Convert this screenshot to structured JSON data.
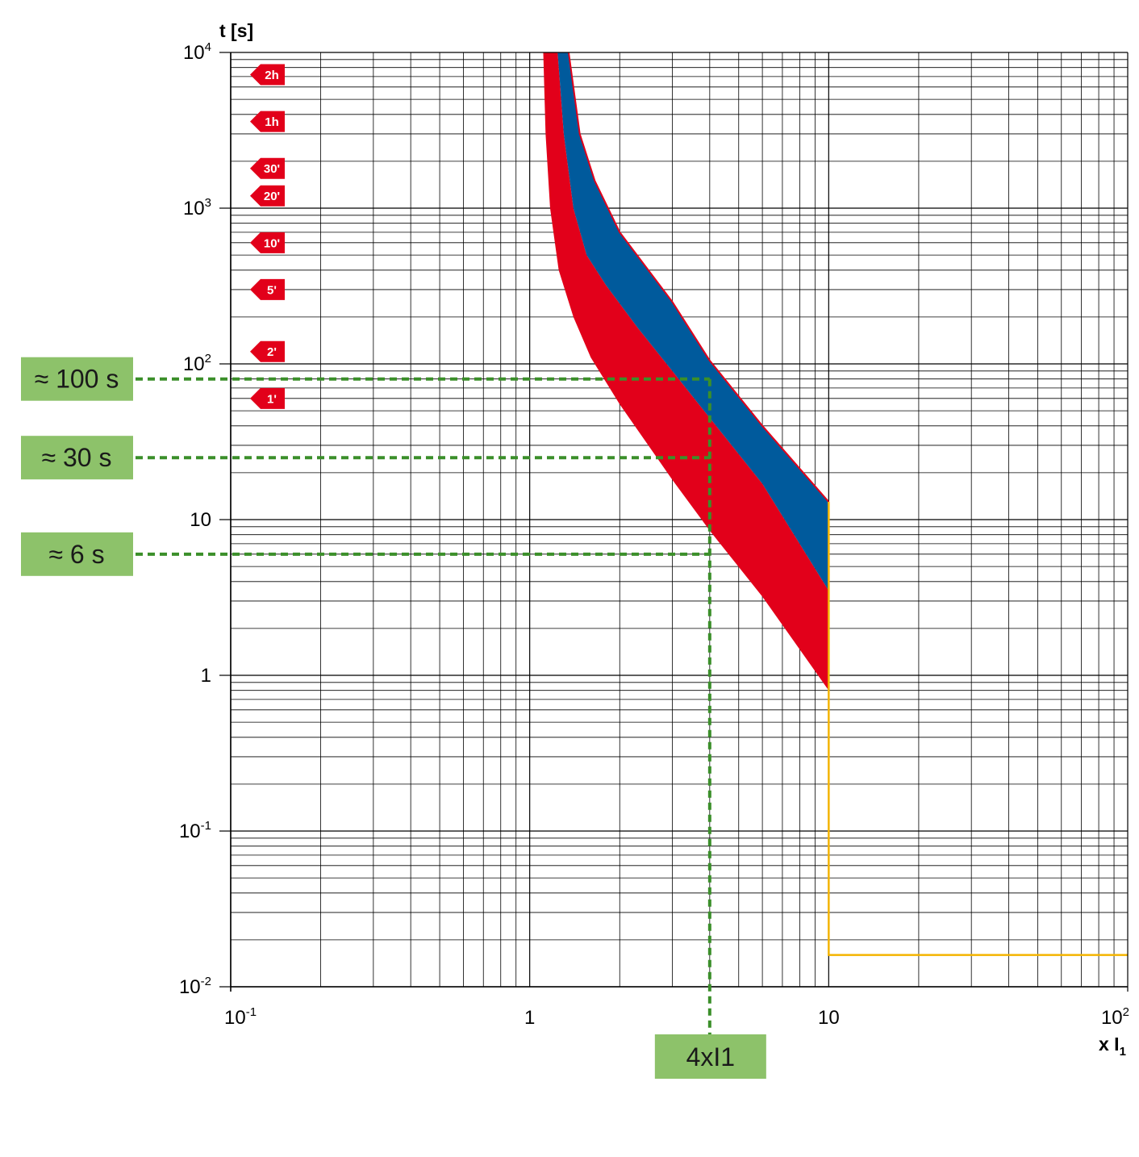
{
  "chart_data": {
    "type": "line",
    "title": "",
    "xlabel": "x I",
    "xlabel_sub": "1",
    "ylabel": "t [s]",
    "xscale": "log",
    "yscale": "log",
    "xlim": [
      0.1,
      100
    ],
    "ylim": [
      0.01,
      10000
    ],
    "grid": true,
    "x_ticks": [
      {
        "value": 0.1,
        "base": "10",
        "exp": "-1"
      },
      {
        "value": 1,
        "base": "1",
        "exp": ""
      },
      {
        "value": 10,
        "base": "10",
        "exp": ""
      },
      {
        "value": 100,
        "base": "10",
        "exp": "2"
      }
    ],
    "y_ticks": [
      {
        "value": 10000,
        "base": "10",
        "exp": "4"
      },
      {
        "value": 1000,
        "base": "10",
        "exp": "3"
      },
      {
        "value": 100,
        "base": "10",
        "exp": "2"
      },
      {
        "value": 10,
        "base": "10",
        "exp": ""
      },
      {
        "value": 1,
        "base": "1",
        "exp": ""
      },
      {
        "value": 0.1,
        "base": "10",
        "exp": "-1"
      },
      {
        "value": 0.01,
        "base": "10",
        "exp": "-2"
      }
    ],
    "time_markers": [
      {
        "label": "2h",
        "seconds": 7200
      },
      {
        "label": "1h",
        "seconds": 3600
      },
      {
        "label": "30'",
        "seconds": 1800
      },
      {
        "label": "20'",
        "seconds": 1200
      },
      {
        "label": "10'",
        "seconds": 600
      },
      {
        "label": "5'",
        "seconds": 300
      },
      {
        "label": "2'",
        "seconds": 120
      },
      {
        "label": "1'",
        "seconds": 60
      }
    ],
    "bands": [
      {
        "color": "#e2001a",
        "upper": [
          [
            1.11,
            10000
          ],
          [
            1.13,
            3000
          ],
          [
            1.17,
            1000
          ],
          [
            1.25,
            400
          ],
          [
            1.4,
            200
          ],
          [
            1.6,
            110
          ],
          [
            2,
            55
          ],
          [
            3,
            18
          ],
          [
            4,
            8.5
          ],
          [
            6,
            3.2
          ],
          [
            10,
            0.8
          ]
        ],
        "lower": [
          [
            1.24,
            10000
          ],
          [
            1.3,
            3000
          ],
          [
            1.4,
            1000
          ],
          [
            1.55,
            500
          ],
          [
            1.8,
            320
          ],
          [
            2.3,
            170
          ],
          [
            3,
            90
          ],
          [
            4,
            45
          ],
          [
            6,
            17
          ],
          [
            10,
            3.5
          ]
        ]
      },
      {
        "color": "#005a9c",
        "upper": [
          [
            1.24,
            10000
          ],
          [
            1.3,
            3000
          ],
          [
            1.4,
            1000
          ],
          [
            1.55,
            500
          ],
          [
            1.8,
            320
          ],
          [
            2.3,
            170
          ],
          [
            3,
            90
          ],
          [
            4,
            45
          ],
          [
            6,
            17
          ],
          [
            10,
            3.5
          ]
        ],
        "lower": [
          [
            1.35,
            10000
          ],
          [
            1.47,
            3000
          ],
          [
            1.65,
            1500
          ],
          [
            2,
            700
          ],
          [
            3,
            250
          ],
          [
            4,
            105
          ],
          [
            6,
            40
          ],
          [
            10,
            13
          ]
        ]
      }
    ],
    "instantaneous_line": {
      "color": "#f4b400",
      "points": [
        [
          10,
          13
        ],
        [
          10,
          0.016
        ],
        [
          100,
          0.016
        ]
      ]
    },
    "annotations": {
      "color": "#3b8f2a",
      "box_color": "#8dc26a",
      "x_mark": {
        "x": 4,
        "label": "4xI1"
      },
      "y_marks": [
        {
          "y": 80,
          "label": "≈ 100 s"
        },
        {
          "y": 25,
          "label": "≈ 30 s"
        },
        {
          "y": 6,
          "label": "≈ 6 s"
        }
      ]
    }
  }
}
